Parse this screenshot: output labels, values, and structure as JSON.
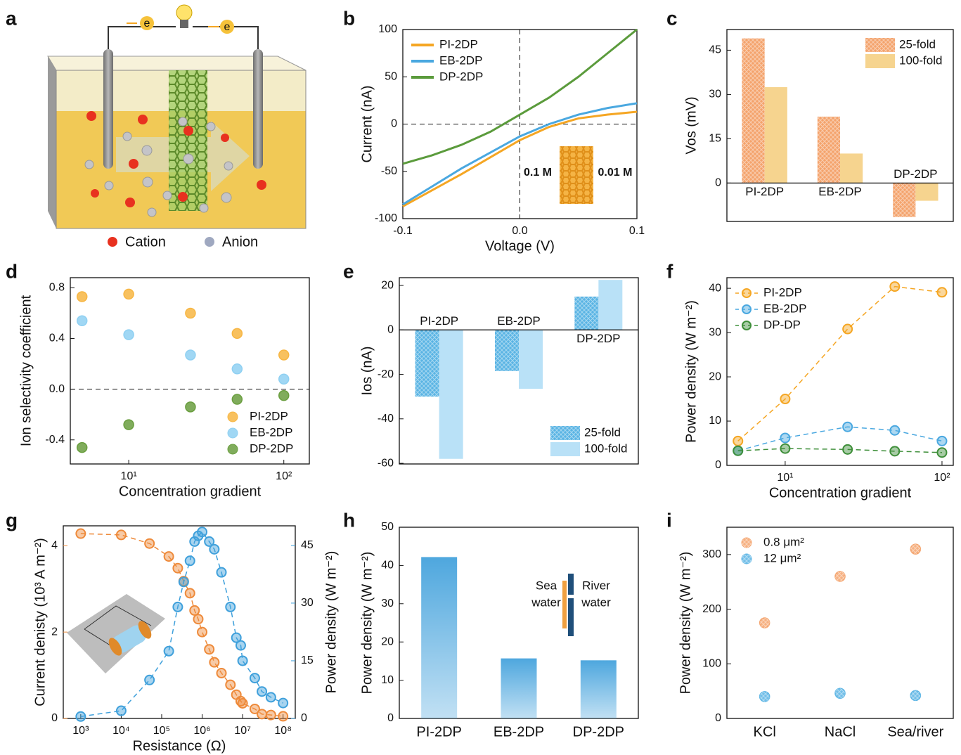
{
  "schematic": {
    "panel": "a",
    "electrons": [
      "e",
      "e"
    ],
    "legend": [
      "Cation",
      "Anion"
    ]
  },
  "chart_data": [
    {
      "panel": "b",
      "type": "line",
      "x": [
        -0.1,
        -0.075,
        -0.05,
        -0.025,
        0,
        0.025,
        0.05,
        0.075,
        0.1
      ],
      "series": [
        {
          "name": "PI-2DP",
          "color": "#f5a623",
          "values": [
            -87,
            -70,
            -53,
            -35,
            -17,
            -3,
            6,
            10,
            13
          ]
        },
        {
          "name": "EB-2DP",
          "color": "#4aa8e0",
          "values": [
            -85,
            -66,
            -47,
            -30,
            -13,
            0,
            10,
            17,
            22
          ]
        },
        {
          "name": "DP-2DP",
          "color": "#5b9b3c",
          "values": [
            -42,
            -33,
            -22,
            -8,
            10,
            28,
            50,
            75,
            100
          ]
        }
      ],
      "xlim": [
        -0.1,
        0.1
      ],
      "xticks": [
        -0.1,
        {
          "value": 0,
          "label": "0.0"
        },
        0.1
      ],
      "ylim": [
        -100,
        100
      ],
      "yticks": [
        -100,
        -50,
        0,
        50,
        100
      ],
      "xlabel": "Voltage (V)",
      "ylabel": "Current (nA)",
      "legend": "top-left",
      "zero_lines": true,
      "annotations": [
        "0.1 M",
        "0.01 M"
      ]
    },
    {
      "panel": "c",
      "type": "bar",
      "categories": [
        "PI-2DP",
        "EB-2DP",
        "DP-2DP"
      ],
      "series": [
        {
          "name": "25-fold",
          "color": "#f4a36c",
          "hatch": true,
          "values": [
            49,
            22.5,
            -11.5
          ]
        },
        {
          "name": "100-fold",
          "color": "#f6d48f",
          "values": [
            32.5,
            10,
            -6
          ]
        }
      ],
      "ylim": [
        -13,
        52
      ],
      "yticks": [
        0,
        15,
        30,
        45
      ],
      "ylabel": "Vos (mV)",
      "legend": "top-right"
    },
    {
      "panel": "d",
      "type": "scatter",
      "x": [
        5,
        10,
        25,
        50,
        100
      ],
      "series": [
        {
          "name": "PI-2DP",
          "color": "#f7b643",
          "values": [
            0.73,
            0.75,
            0.6,
            0.44,
            0.27
          ]
        },
        {
          "name": "EB-2DP",
          "color": "#8fd0f2",
          "values": [
            0.54,
            0.43,
            0.27,
            0.16,
            0.08
          ]
        },
        {
          "name": "DP-2DP",
          "color": "#6a9e3f",
          "values": [
            -0.46,
            -0.28,
            -0.14,
            -0.08,
            -0.05
          ]
        }
      ],
      "xscale": "log",
      "xlim": [
        4.2,
        146
      ],
      "xticks": [
        {
          "value": 10,
          "label": "10¹"
        },
        {
          "value": 100,
          "label": "10²"
        }
      ],
      "ylim": [
        -0.59,
        0.88
      ],
      "yticks": [
        -0.4,
        {
          "value": 0,
          "label": "0.0"
        },
        0.4,
        0.8
      ],
      "xlabel": "Concentration gradient",
      "ylabel": "Ion selectivity coefficient",
      "legend": "bottom-right",
      "zero_lines": true
    },
    {
      "panel": "e",
      "type": "bar",
      "categories": [
        "PI-2DP",
        "EB-2DP",
        "DP-2DP"
      ],
      "series": [
        {
          "name": "25-fold",
          "color": "#5ab4e4",
          "hatch": true,
          "values": [
            -30,
            -18.5,
            15
          ]
        },
        {
          "name": "100-fold",
          "color": "#b9e1f7",
          "values": [
            -58,
            -26.5,
            22.5
          ]
        }
      ],
      "ylim": [
        -60.3,
        23.5
      ],
      "yticks": [
        -60,
        -40,
        -20,
        0,
        20
      ],
      "ylabel": "Ios (nA)",
      "legend": "bottom-right"
    },
    {
      "panel": "f",
      "type": "line",
      "markers": true,
      "dashed": true,
      "x": [
        5,
        10,
        25,
        50,
        100
      ],
      "series": [
        {
          "name": "PI-2DP",
          "color": "#f5a623",
          "values": [
            5.5,
            15,
            30.8,
            40.4,
            39.1
          ]
        },
        {
          "name": "EB-2DP",
          "color": "#4aa8e0",
          "values": [
            3.3,
            6.2,
            8.7,
            7.9,
            5.5
          ]
        },
        {
          "name": "DP-DP",
          "color": "#3f8f3a",
          "values": [
            3.3,
            3.8,
            3.6,
            3.2,
            2.9
          ]
        }
      ],
      "xscale": "log",
      "xlim": [
        4.25,
        118
      ],
      "xticks": [
        {
          "value": 10,
          "label": "10¹"
        },
        {
          "value": 100,
          "label": "10²"
        }
      ],
      "ylim": [
        0,
        42.4
      ],
      "yticks": [
        0,
        10,
        20,
        30,
        40
      ],
      "xlabel": "Concentration gradient",
      "ylabel": "Power density (W m⁻²)",
      "legend": "top-left"
    },
    {
      "panel": "g",
      "type": "line",
      "markers": true,
      "dashed": true,
      "x": [
        1000,
        10000,
        50000,
        150000,
        250000,
        350000,
        500000,
        650000,
        800000,
        1000000,
        1500000,
        2000000,
        3000000,
        5000000,
        7000000,
        9000000,
        10000000,
        20000000,
        30000000,
        50000000,
        100000000
      ],
      "series": [
        {
          "color": "#ee8a3a",
          "values": [
            4.28,
            4.25,
            4.05,
            3.75,
            3.48,
            3.18,
            2.9,
            2.5,
            2.3,
            2.0,
            1.6,
            1.3,
            1.05,
            0.78,
            0.55,
            0.4,
            0.35,
            0.22,
            0.1,
            0.08,
            0.05
          ]
        },
        {
          "color": "#3fa0db",
          "axis": "y2",
          "values": [
            0.5,
            2,
            10,
            17.5,
            29,
            35.5,
            41,
            46,
            47.5,
            48.5,
            46,
            44,
            38,
            29,
            21,
            19,
            15,
            10.5,
            7,
            5.5,
            4
          ]
        }
      ],
      "xscale": "log",
      "xlim": [
        370,
        200000000
      ],
      "xticks": [
        {
          "value": 1000,
          "label": "10³"
        },
        {
          "value": 10000,
          "label": "10⁴"
        },
        {
          "value": 100000,
          "label": "10⁵"
        },
        {
          "value": 1000000,
          "label": "10⁶"
        },
        {
          "value": 10000000,
          "label": "10⁷"
        },
        {
          "value": 100000000,
          "label": "10⁸"
        }
      ],
      "ylim": [
        0,
        4.46
      ],
      "yticks": [
        0,
        2,
        4
      ],
      "y2lim": [
        0,
        50.1
      ],
      "y2ticks": [
        0,
        15,
        30,
        45
      ],
      "xlabel": "Resistance (Ω)",
      "ylabel": "Current denisty (10³ A m⁻²)",
      "y2label": "Power density (W m⁻²)"
    },
    {
      "panel": "h",
      "type": "bar",
      "categories": [
        "PI-2DP",
        "EB-2DP",
        "DP-2DP"
      ],
      "values": [
        42.2,
        15.7,
        15.2
      ],
      "color": "#4ea7de",
      "gradient": true,
      "ylim": [
        0,
        50
      ],
      "yticks": [
        0,
        10,
        20,
        30,
        40,
        50
      ],
      "ylabel": "Power density (W m⁻²)",
      "annotations": [
        "Sea",
        "water",
        "River",
        "water"
      ]
    },
    {
      "panel": "i",
      "type": "scatter",
      "categories": [
        "KCl",
        "NaCl",
        "Sea/river"
      ],
      "series": [
        {
          "name": "0.8 μm²",
          "color": "#f4a36c",
          "hatch": true,
          "values": [
            175,
            260,
            310
          ]
        },
        {
          "name": "12 μm²",
          "color": "#5ab4e4",
          "hatch": true,
          "values": [
            40,
            46,
            42
          ]
        }
      ],
      "ylim": [
        0,
        350
      ],
      "yticks": [
        0,
        100,
        200,
        300
      ],
      "ylabel": "Power density (W m⁻²)",
      "legend": "top-left"
    }
  ]
}
